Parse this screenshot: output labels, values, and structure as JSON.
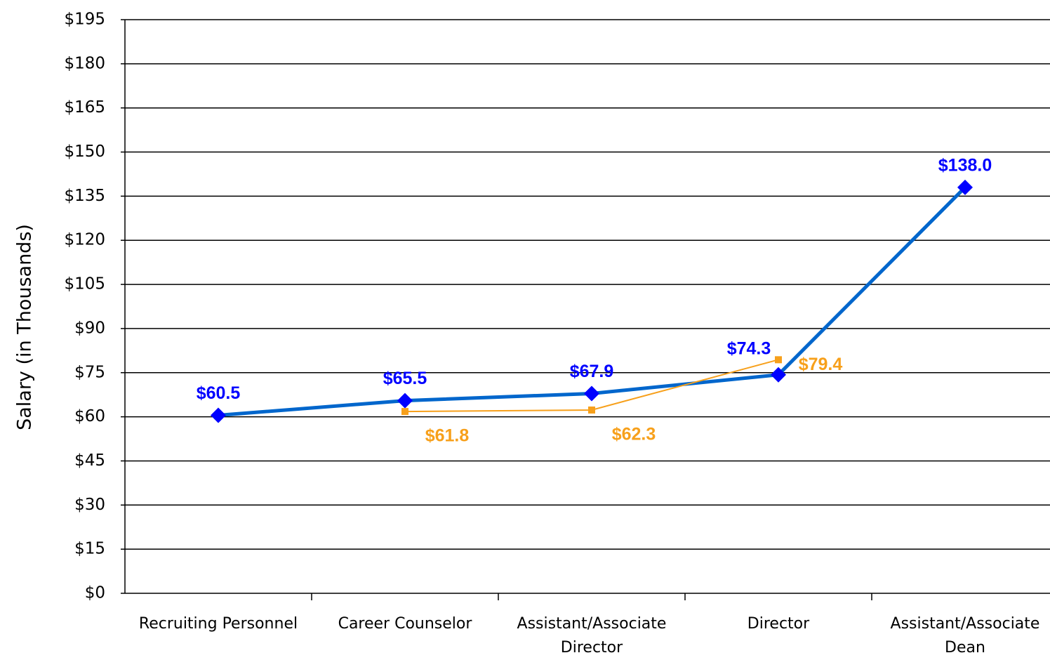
{
  "chart_data": {
    "type": "line",
    "y_label": "Salary (in Thousands)",
    "categories": [
      "Recruiting Personnel",
      "Career Counselor",
      "Assistant/Associate Director",
      "Director",
      "Assistant/Associate Dean"
    ],
    "series": [
      {
        "color": "#0066cc",
        "marker_color": "#0000ff",
        "values": [
          60.5,
          65.5,
          67.9,
          74.3,
          138.0
        ],
        "value_labels": [
          "$60.5",
          "$65.5",
          "$67.9",
          "$74.3",
          "$138.0"
        ]
      },
      {
        "color": "#f7a01b",
        "marker_color": "#f7a01b",
        "values": [
          null,
          61.8,
          62.3,
          79.4,
          null
        ],
        "value_labels": [
          null,
          "$61.8",
          "$62.3",
          "$79.4",
          null
        ]
      }
    ],
    "ylim": [
      0,
      195
    ],
    "yticks": [
      {
        "value": 0,
        "label": "$0"
      },
      {
        "value": 15,
        "label": "$15"
      },
      {
        "value": 30,
        "label": "$30"
      },
      {
        "value": 45,
        "label": "$45"
      },
      {
        "value": 60,
        "label": "$60"
      },
      {
        "value": 75,
        "label": "$75"
      },
      {
        "value": 90,
        "label": "$90"
      },
      {
        "value": 105,
        "label": "$105"
      },
      {
        "value": 120,
        "label": "$120"
      },
      {
        "value": 135,
        "label": "$135"
      },
      {
        "value": 150,
        "label": "$150"
      },
      {
        "value": 165,
        "label": "$165"
      },
      {
        "value": 180,
        "label": "$180"
      },
      {
        "value": 195,
        "label": "$195"
      }
    ],
    "grid": true
  }
}
